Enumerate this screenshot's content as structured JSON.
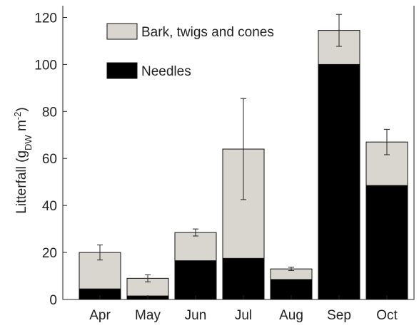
{
  "chart_data": {
    "type": "bar",
    "stacked": true,
    "y_label": {
      "text": "Litterfall (g",
      "sub": "DW",
      "mid": " m",
      "sup": "-2",
      "end": ")"
    },
    "categories": [
      "Apr",
      "May",
      "Jun",
      "Jul",
      "Aug",
      "Sep",
      "Oct"
    ],
    "series": [
      {
        "name": "Needles",
        "color": "#000000",
        "values": [
          4.5,
          1.5,
          16.5,
          17.5,
          8.5,
          100,
          48.5
        ]
      },
      {
        "name": "Bark, twigs and cones",
        "color": "#d9d6d0",
        "values": [
          15.5,
          7.5,
          12,
          46.5,
          4.5,
          14.5,
          18.5
        ],
        "errors": [
          3.2,
          1.5,
          1.5,
          21.5,
          0.7,
          6.8,
          5.4
        ]
      }
    ],
    "ylim": [
      0,
      125
    ],
    "yticks": [
      0,
      20,
      40,
      60,
      80,
      100,
      120
    ],
    "legend": "upper-left"
  }
}
